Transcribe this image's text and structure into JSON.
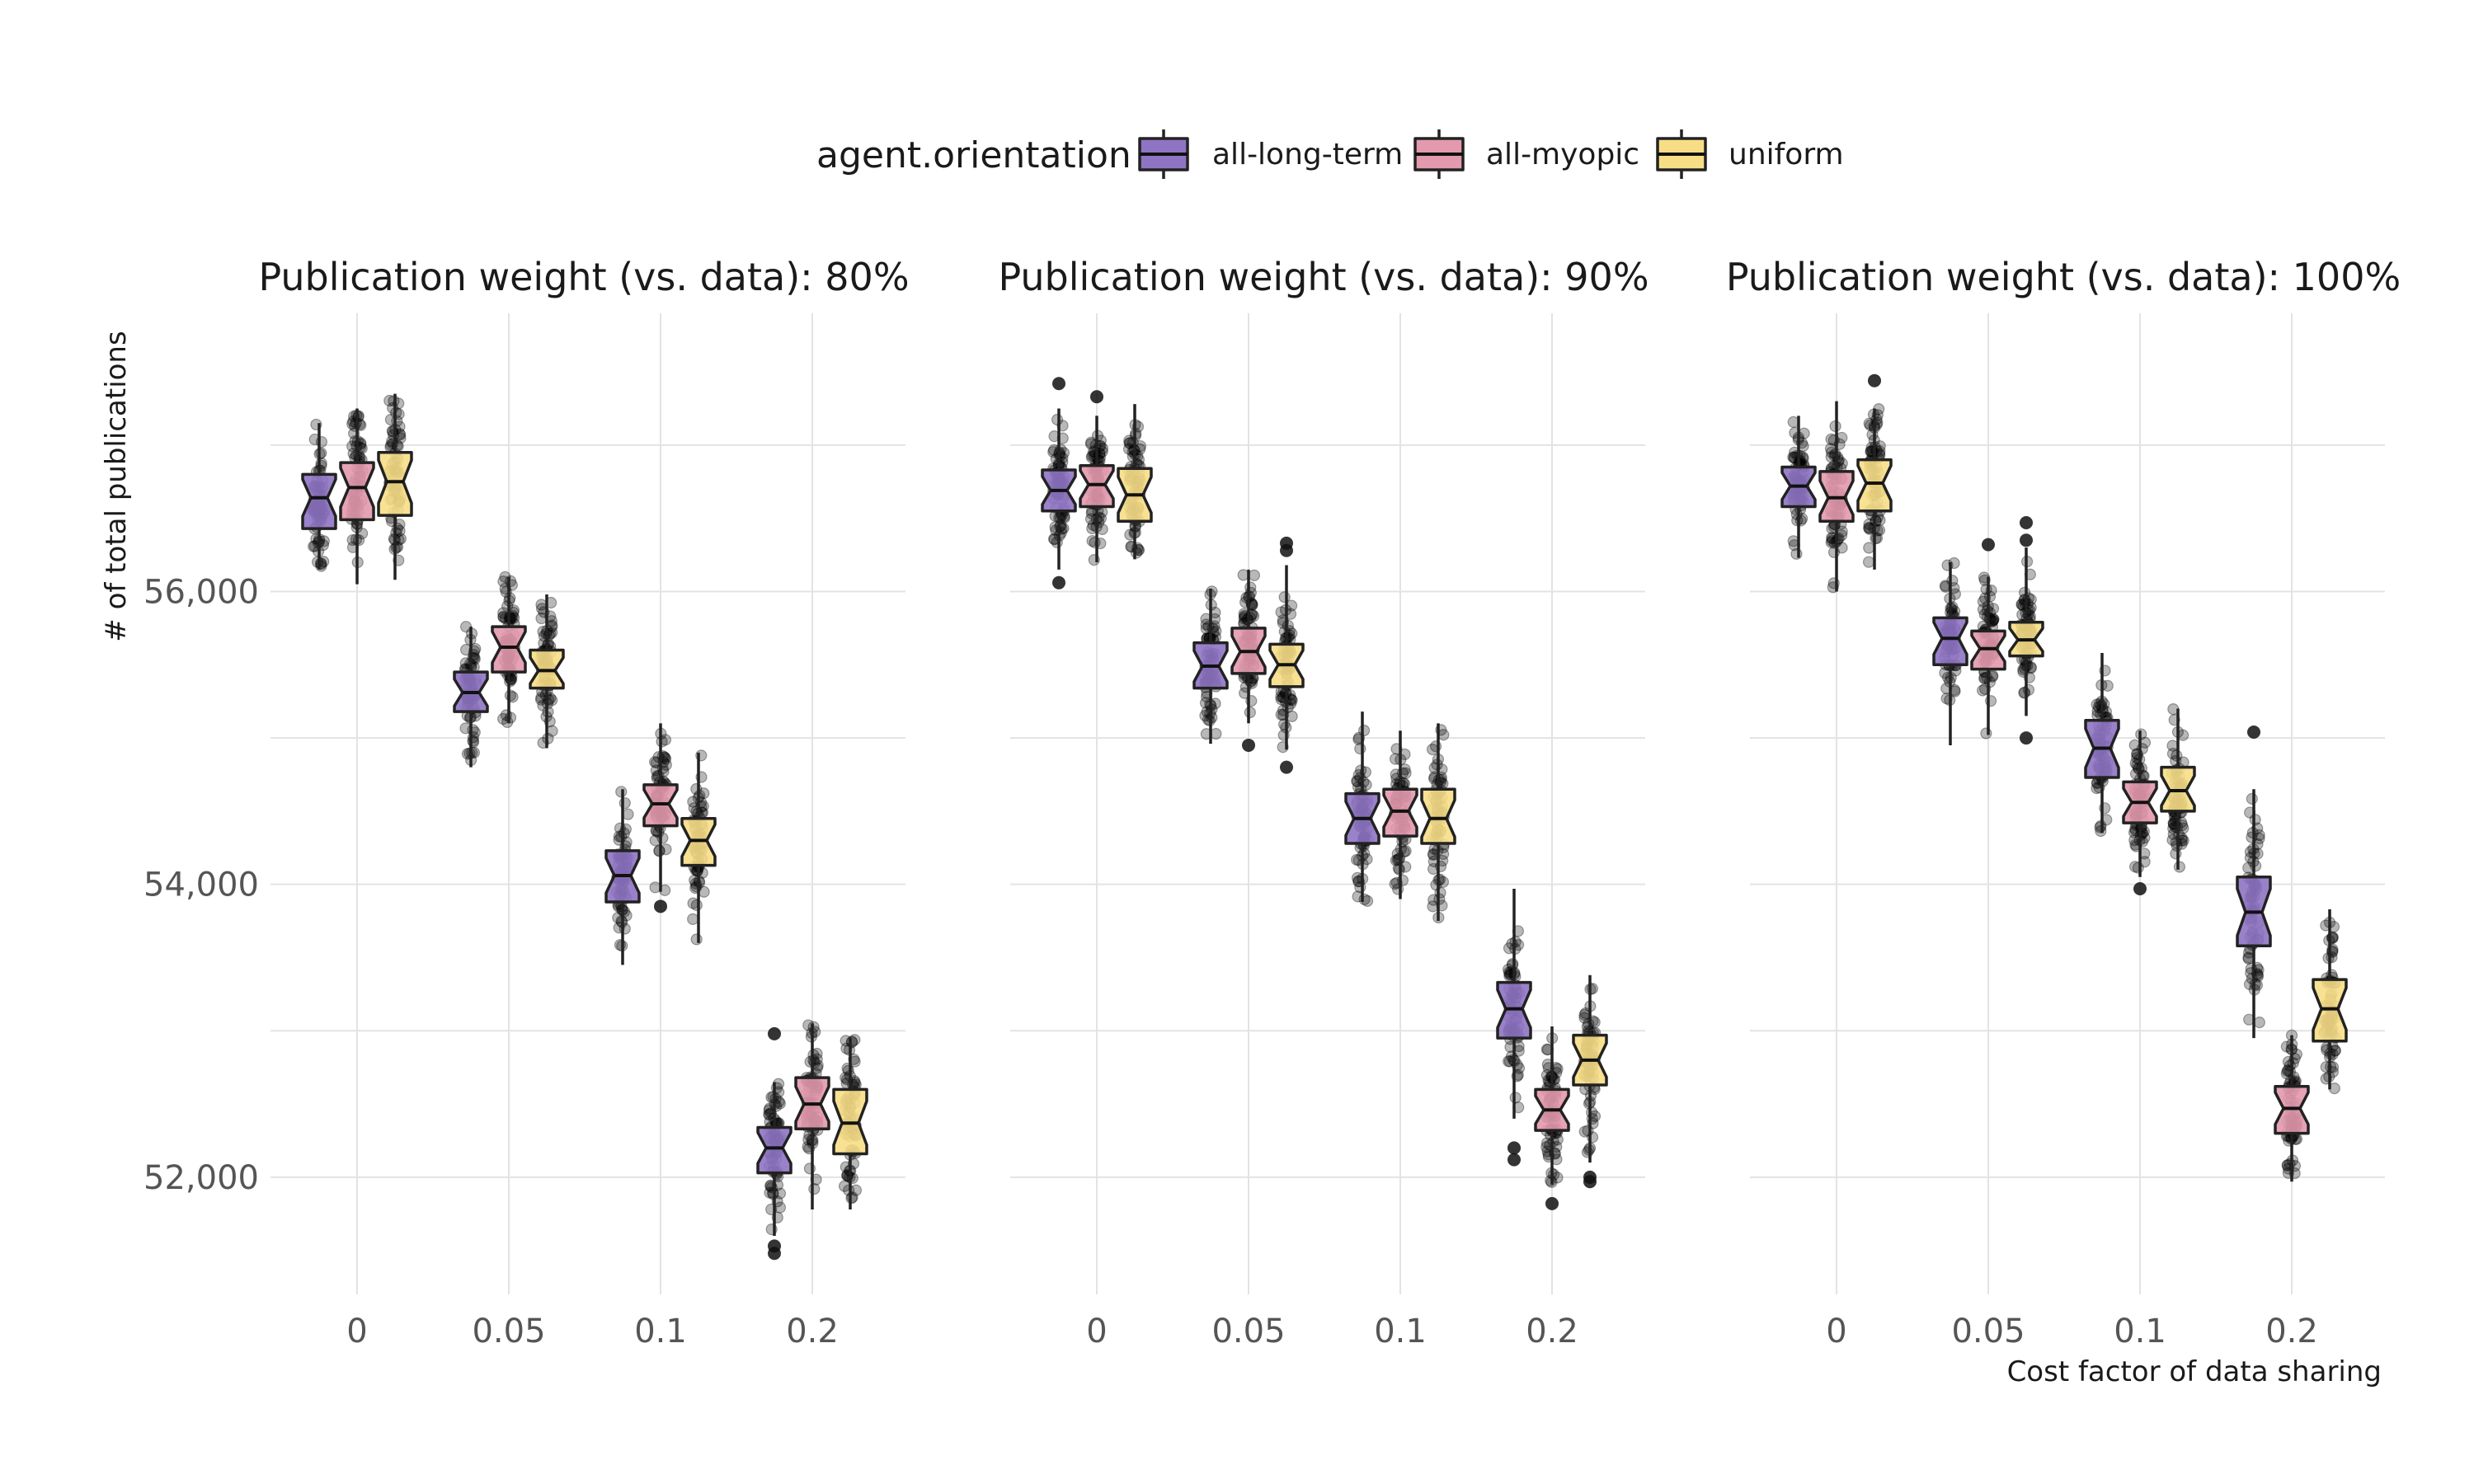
{
  "chart_data": {
    "type": "box",
    "legend": {
      "title": "agent.orientation",
      "position": "top",
      "entries": [
        {
          "name": "all-long-term",
          "color": "#8F74C4"
        },
        {
          "name": "all-myopic",
          "color": "#E399AE"
        },
        {
          "name": "uniform",
          "color": "#F7DE86"
        }
      ]
    },
    "xlabel": "Cost factor of data sharing",
    "ylabel": "# of total publications",
    "categories": [
      "0",
      "0.05",
      "0.1",
      "0.2"
    ],
    "ylim": [
      51200,
      57900
    ],
    "yticks": [
      52000,
      54000,
      56000
    ],
    "ytick_labels": [
      "52,000",
      "54,000",
      "56,000"
    ],
    "grid": true,
    "facets": [
      {
        "title": "Publication weight (vs. data): 80%",
        "groups": [
          {
            "category": "0",
            "series": "all-long-term",
            "q1": 56430,
            "median": 56640,
            "q3": 56800,
            "wmin": 56150,
            "wmax": 57150,
            "outliers": []
          },
          {
            "category": "0",
            "series": "all-myopic",
            "q1": 56490,
            "median": 56710,
            "q3": 56880,
            "wmin": 56050,
            "wmax": 57250,
            "outliers": []
          },
          {
            "category": "0",
            "series": "uniform",
            "q1": 56520,
            "median": 56750,
            "q3": 56950,
            "wmin": 56080,
            "wmax": 57350,
            "outliers": []
          },
          {
            "category": "0.05",
            "series": "all-long-term",
            "q1": 55180,
            "median": 55310,
            "q3": 55450,
            "wmin": 54800,
            "wmax": 55760,
            "outliers": []
          },
          {
            "category": "0.05",
            "series": "all-myopic",
            "q1": 55450,
            "median": 55620,
            "q3": 55760,
            "wmin": 55100,
            "wmax": 56100,
            "outliers": []
          },
          {
            "category": "0.05",
            "series": "uniform",
            "q1": 55340,
            "median": 55460,
            "q3": 55600,
            "wmin": 54930,
            "wmax": 55980,
            "outliers": []
          },
          {
            "category": "0.1",
            "series": "all-long-term",
            "q1": 53880,
            "median": 54060,
            "q3": 54230,
            "wmin": 53450,
            "wmax": 54650,
            "outliers": []
          },
          {
            "category": "0.1",
            "series": "all-myopic",
            "q1": 54400,
            "median": 54550,
            "q3": 54680,
            "wmin": 53950,
            "wmax": 55100,
            "outliers": [
              53850
            ]
          },
          {
            "category": "0.1",
            "series": "uniform",
            "q1": 54130,
            "median": 54300,
            "q3": 54450,
            "wmin": 53600,
            "wmax": 54900,
            "outliers": []
          },
          {
            "category": "0.2",
            "series": "all-long-term",
            "q1": 52030,
            "median": 52200,
            "q3": 52340,
            "wmin": 51600,
            "wmax": 52650,
            "outliers": [
              51480,
              51530,
              52980
            ]
          },
          {
            "category": "0.2",
            "series": "all-myopic",
            "q1": 52330,
            "median": 52500,
            "q3": 52680,
            "wmin": 51780,
            "wmax": 53050,
            "outliers": []
          },
          {
            "category": "0.2",
            "series": "uniform",
            "q1": 52160,
            "median": 52370,
            "q3": 52600,
            "wmin": 51780,
            "wmax": 52950,
            "outliers": []
          }
        ]
      },
      {
        "title": "Publication weight (vs. data): 90%",
        "groups": [
          {
            "category": "0",
            "series": "all-long-term",
            "q1": 56550,
            "median": 56690,
            "q3": 56830,
            "wmin": 56150,
            "wmax": 57250,
            "outliers": [
              56060,
              57420
            ]
          },
          {
            "category": "0",
            "series": "all-myopic",
            "q1": 56580,
            "median": 56730,
            "q3": 56860,
            "wmin": 56200,
            "wmax": 57200,
            "outliers": [
              57330
            ]
          },
          {
            "category": "0",
            "series": "uniform",
            "q1": 56480,
            "median": 56660,
            "q3": 56840,
            "wmin": 56220,
            "wmax": 57280,
            "outliers": []
          },
          {
            "category": "0.05",
            "series": "all-long-term",
            "q1": 55340,
            "median": 55490,
            "q3": 55650,
            "wmin": 54960,
            "wmax": 56020,
            "outliers": []
          },
          {
            "category": "0.05",
            "series": "all-myopic",
            "q1": 55440,
            "median": 55590,
            "q3": 55750,
            "wmin": 55100,
            "wmax": 56150,
            "outliers": [
              54950
            ]
          },
          {
            "category": "0.05",
            "series": "uniform",
            "q1": 55350,
            "median": 55500,
            "q3": 55640,
            "wmin": 54920,
            "wmax": 56180,
            "outliers": [
              54800,
              56280,
              56330
            ]
          },
          {
            "category": "0.1",
            "series": "all-long-term",
            "q1": 54280,
            "median": 54450,
            "q3": 54620,
            "wmin": 53880,
            "wmax": 55180,
            "outliers": []
          },
          {
            "category": "0.1",
            "series": "all-myopic",
            "q1": 54330,
            "median": 54500,
            "q3": 54650,
            "wmin": 53900,
            "wmax": 55050,
            "outliers": []
          },
          {
            "category": "0.1",
            "series": "uniform",
            "q1": 54280,
            "median": 54450,
            "q3": 54650,
            "wmin": 53750,
            "wmax": 55100,
            "outliers": []
          },
          {
            "category": "0.2",
            "series": "all-long-term",
            "q1": 52950,
            "median": 53150,
            "q3": 53330,
            "wmin": 52400,
            "wmax": 53970,
            "outliers": [
              52120,
              52200
            ]
          },
          {
            "category": "0.2",
            "series": "all-myopic",
            "q1": 52320,
            "median": 52460,
            "q3": 52600,
            "wmin": 51950,
            "wmax": 53030,
            "outliers": [
              51820
            ]
          },
          {
            "category": "0.2",
            "series": "uniform",
            "q1": 52630,
            "median": 52800,
            "q3": 52970,
            "wmin": 52100,
            "wmax": 53380,
            "outliers": [
              51970,
              52000
            ]
          }
        ]
      },
      {
        "title": "Publication weight (vs. data): 100%",
        "groups": [
          {
            "category": "0",
            "series": "all-long-term",
            "q1": 56580,
            "median": 56720,
            "q3": 56850,
            "wmin": 56230,
            "wmax": 57200,
            "outliers": []
          },
          {
            "category": "0",
            "series": "all-myopic",
            "q1": 56480,
            "median": 56640,
            "q3": 56820,
            "wmin": 56000,
            "wmax": 57300,
            "outliers": []
          },
          {
            "category": "0",
            "series": "uniform",
            "q1": 56550,
            "median": 56740,
            "q3": 56900,
            "wmin": 56150,
            "wmax": 57250,
            "outliers": [
              57440
            ]
          },
          {
            "category": "0.05",
            "series": "all-long-term",
            "q1": 55500,
            "median": 55680,
            "q3": 55820,
            "wmin": 54950,
            "wmax": 56200,
            "outliers": []
          },
          {
            "category": "0.05",
            "series": "all-myopic",
            "q1": 55470,
            "median": 55610,
            "q3": 55730,
            "wmin": 55020,
            "wmax": 56100,
            "outliers": [
              56320
            ]
          },
          {
            "category": "0.05",
            "series": "uniform",
            "q1": 55560,
            "median": 55670,
            "q3": 55790,
            "wmin": 55150,
            "wmax": 56300,
            "outliers": [
              55000,
              56350,
              56470
            ]
          },
          {
            "category": "0.1",
            "series": "all-long-term",
            "q1": 54730,
            "median": 54930,
            "q3": 55120,
            "wmin": 54350,
            "wmax": 55580,
            "outliers": []
          },
          {
            "category": "0.1",
            "series": "all-myopic",
            "q1": 54420,
            "median": 54560,
            "q3": 54700,
            "wmin": 54050,
            "wmax": 55050,
            "outliers": [
              53970
            ]
          },
          {
            "category": "0.1",
            "series": "uniform",
            "q1": 54500,
            "median": 54640,
            "q3": 54800,
            "wmin": 54100,
            "wmax": 55200,
            "outliers": []
          },
          {
            "category": "0.2",
            "series": "all-long-term",
            "q1": 53580,
            "median": 53810,
            "q3": 54050,
            "wmin": 52950,
            "wmax": 54650,
            "outliers": [
              55040
            ]
          },
          {
            "category": "0.2",
            "series": "all-myopic",
            "q1": 52300,
            "median": 52470,
            "q3": 52620,
            "wmin": 51970,
            "wmax": 52970,
            "outliers": []
          },
          {
            "category": "0.2",
            "series": "uniform",
            "q1": 52930,
            "median": 53150,
            "q3": 53350,
            "wmin": 52600,
            "wmax": 53830,
            "outliers": []
          }
        ]
      }
    ]
  }
}
